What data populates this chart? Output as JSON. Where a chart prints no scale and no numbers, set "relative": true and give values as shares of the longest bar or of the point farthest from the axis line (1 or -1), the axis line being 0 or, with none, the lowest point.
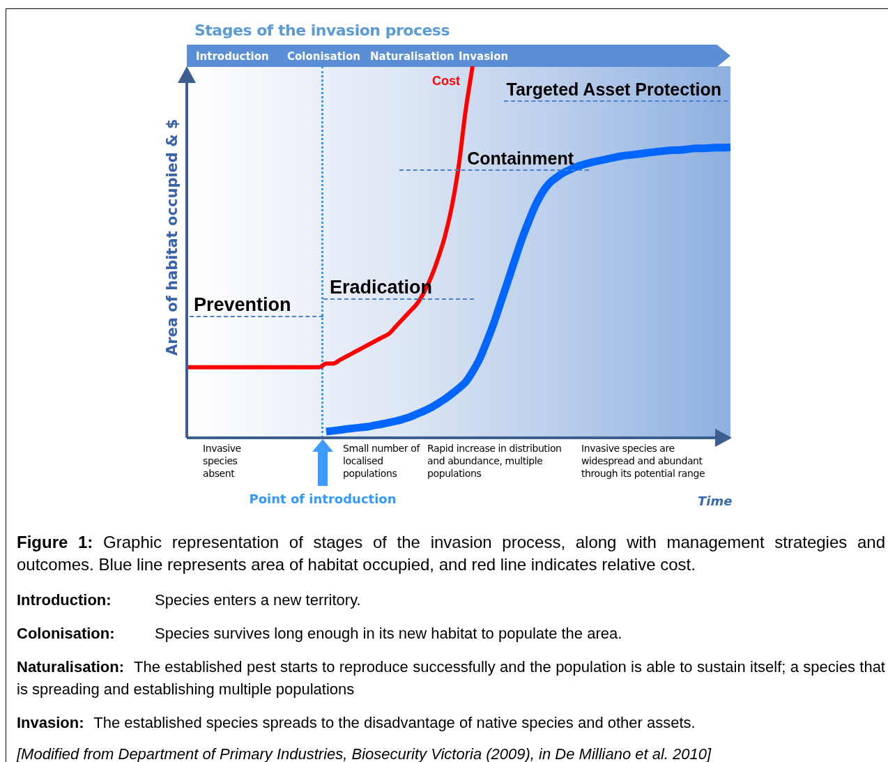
{
  "chart_data": {
    "type": "line",
    "relative": true,
    "title": "Stages of the invasion process",
    "xlabel": "Time",
    "ylabel": "Area of habitat occupied & $",
    "categories": [
      null,
      null,
      null,
      null,
      null,
      null,
      null,
      null,
      null,
      null,
      null,
      null,
      null,
      null,
      null,
      null,
      null,
      null,
      null,
      null,
      null,
      null,
      null,
      null,
      null,
      null,
      null,
      null,
      null,
      null,
      null,
      null,
      null,
      null,
      null,
      null,
      null,
      null,
      null,
      null,
      null,
      null,
      null,
      null,
      null,
      null,
      null,
      null,
      null,
      null,
      null,
      null,
      null,
      null,
      null,
      null,
      null,
      null,
      null,
      null,
      null,
      null,
      null,
      null,
      null,
      null,
      null,
      null,
      null,
      null,
      null,
      null,
      null,
      null,
      null,
      null,
      null,
      null,
      null
    ],
    "series": [
      {
        "name": "Cost",
        "color": "#ff0000",
        "values": [
          0.19,
          0.19,
          0.19,
          0.19,
          0.19,
          0.19,
          0.19,
          0.19,
          0.19,
          0.19,
          0.19,
          0.19,
          0.19,
          0.19,
          0.19,
          0.19,
          0.19,
          0.19,
          0.19,
          0.19,
          0.2,
          0.2,
          0.21,
          0.22,
          0.23,
          0.24,
          0.25,
          0.26,
          0.27,
          0.28,
          0.3,
          0.32,
          0.34,
          0.36,
          0.39,
          0.43,
          0.48,
          0.54,
          0.62,
          0.73,
          0.88,
          1,
          null,
          null,
          null,
          null,
          null,
          null,
          null,
          null,
          null,
          null,
          null,
          null,
          null,
          null,
          null,
          null,
          null,
          null,
          null,
          null,
          null,
          null,
          null,
          null,
          null,
          null,
          null,
          null,
          null,
          null,
          null,
          null,
          null,
          null,
          null,
          null,
          null
        ]
      },
      {
        "color": "#0066ff",
        "values": [
          null,
          null,
          null,
          null,
          null,
          null,
          null,
          null,
          null,
          null,
          null,
          null,
          null,
          null,
          null,
          null,
          null,
          null,
          null,
          null,
          0.017,
          0.019,
          0.021,
          0.024,
          0.026,
          0.028,
          0.03,
          0.034,
          0.037,
          0.041,
          0.045,
          0.05,
          0.056,
          0.064,
          0.072,
          0.081,
          0.092,
          0.104,
          0.118,
          0.133,
          0.15,
          0.178,
          0.212,
          0.257,
          0.306,
          0.362,
          0.418,
          0.475,
          0.531,
          0.58,
          0.625,
          0.66,
          0.685,
          0.7,
          0.713,
          0.722,
          0.73,
          0.736,
          0.741,
          0.745,
          0.749,
          0.753,
          0.757,
          0.76,
          0.762,
          0.764,
          0.767,
          0.769,
          0.771,
          0.773,
          0.774,
          0.775,
          0.777,
          0.779,
          0.779,
          0.78,
          0.781,
          0.781,
          0.782
        ]
      }
    ],
    "annotations": [
      "Introduction",
      "Colonisation",
      "Naturalisation",
      "Invasion",
      "Prevention",
      "Eradication",
      "Containment",
      "Targeted Asset Protection",
      "Invasive species absent",
      "Small number of localised populations",
      "Rapid increase in distribution and abundance, multiple populations",
      "Invasive species are widespread and abundant through its potential range",
      "Figure 1: Graphic representation of stages of the invasion process, along with management strategies and outcomes. Blue line represents area of habitat occupied, and red line indicates relative cost.",
      "Introduction: Species enters a new territory.",
      "Colonisation: Species survives long enough in its new habitat to populate the area.",
      "Naturalisation: The established pest starts to reproduce successfully and the population is able to sustain itself; a species that is spreading and establishing multiple populations",
      "Invasion: The established species spreads to the disadvantage of native species and other assets.",
      "[Modified from Department of Primary Industries, Biosecurity Victoria (2009), in De Milliano et al. 2010]",
      "Point of introduction"
    ]
  }
}
